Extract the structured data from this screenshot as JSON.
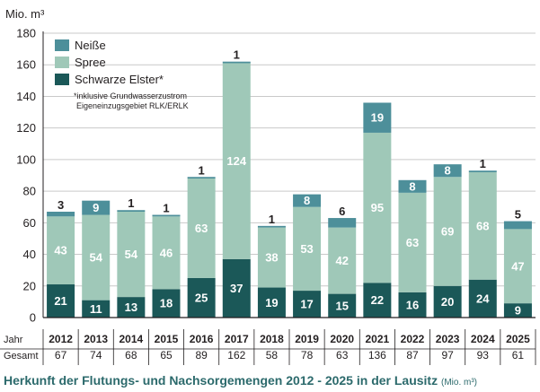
{
  "chart_data": {
    "type": "bar",
    "stacked": true,
    "title": "Herkunft der Flutungs- und Nachsorgemengen 2012 - 2025 in der Lausitz",
    "title_unit": "(Mio. m³)",
    "ylabel": "Mio. m³",
    "ylim": [
      0,
      180
    ],
    "yticks": [
      "0",
      "20",
      "40",
      "60",
      "80",
      "100",
      "120",
      "140",
      "160",
      "180"
    ],
    "grid": true,
    "legend_position": "top-left",
    "categories": [
      "2012",
      "2013",
      "2014",
      "2015",
      "2016",
      "2017",
      "2018",
      "2019",
      "2020",
      "2021",
      "2022",
      "2023",
      "2024",
      "2025"
    ],
    "series": [
      {
        "name": "Schwarze Elster*",
        "color": "#1b5858",
        "values": [
          21,
          11,
          13,
          18,
          25,
          37,
          19,
          17,
          15,
          22,
          16,
          20,
          24,
          9
        ]
      },
      {
        "name": "Spree",
        "color": "#9fc8b8",
        "values": [
          43,
          54,
          54,
          46,
          63,
          124,
          38,
          53,
          42,
          95,
          63,
          69,
          68,
          47
        ]
      },
      {
        "name": "Neiße",
        "color": "#4d8f9a",
        "values": [
          3,
          9,
          1,
          1,
          1,
          1,
          1,
          8,
          6,
          19,
          8,
          8,
          1,
          5
        ]
      }
    ],
    "legend_note": [
      "*inklusive Grundwasserzustrom",
      "Eigeneinzugsgebiet RLK/ERLK"
    ],
    "row_labels": {
      "year": "Jahr",
      "total": "Gesamt"
    },
    "totals": [
      67,
      74,
      68,
      65,
      89,
      162,
      58,
      78,
      63,
      136,
      87,
      97,
      93,
      61
    ]
  }
}
